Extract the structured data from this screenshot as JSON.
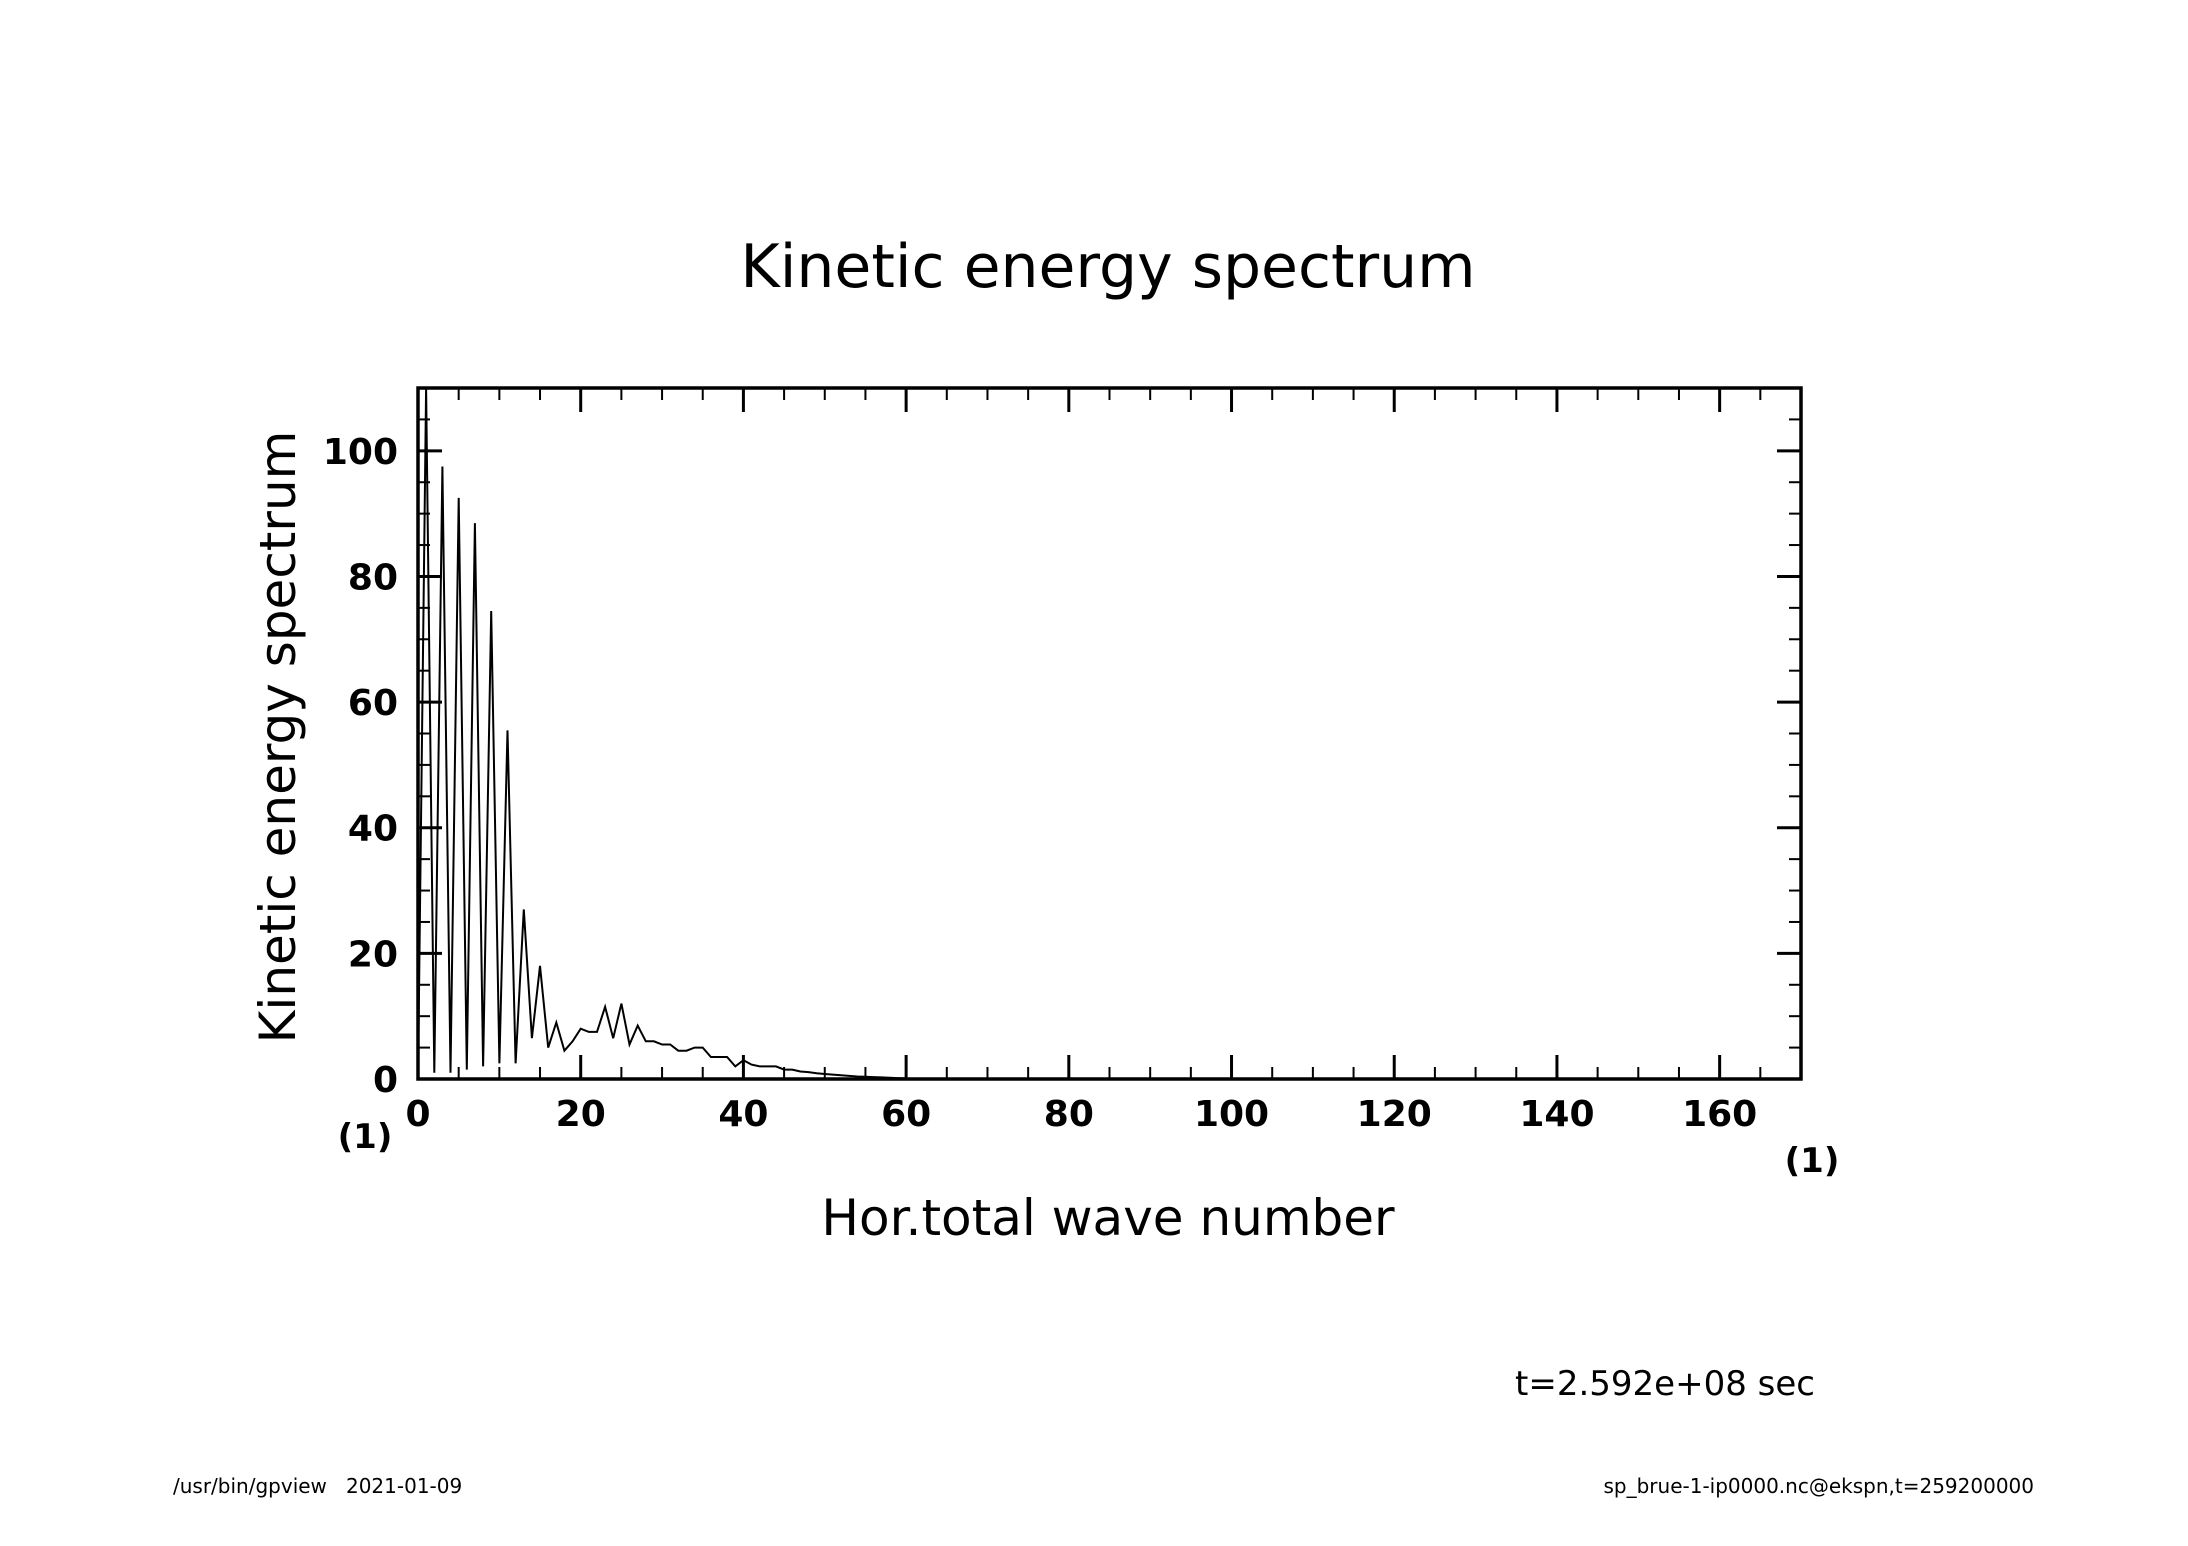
{
  "chart_data": {
    "type": "line",
    "title": "Kinetic energy spectrum",
    "xlabel": "Hor.total wave number",
    "ylabel": "Kinetic energy spectrum",
    "x_unit": "(1)",
    "y_unit": "(1)",
    "xlim": [
      0,
      170
    ],
    "ylim": [
      0,
      110
    ],
    "x_ticks": [
      0,
      20,
      40,
      60,
      80,
      100,
      120,
      140,
      160
    ],
    "y_ticks": [
      0,
      20,
      40,
      60,
      80,
      100
    ],
    "grid": false,
    "series": [
      {
        "x": [
          0,
          1,
          2,
          3,
          4,
          5,
          6,
          7,
          8,
          9,
          10,
          11,
          12,
          13,
          14,
          15,
          16,
          17,
          18,
          19,
          20,
          21,
          22,
          23,
          24,
          25,
          26,
          27,
          28,
          29,
          30,
          31,
          32,
          33,
          34,
          35,
          36,
          37,
          38,
          39,
          40,
          41,
          42,
          43,
          44,
          45,
          46,
          47,
          48,
          49,
          50,
          51,
          52,
          53,
          54,
          55,
          56,
          57,
          58,
          59,
          60,
          62,
          64,
          66,
          68,
          70,
          75,
          80,
          90,
          100,
          110,
          120,
          130,
          140,
          150,
          160,
          169
        ],
        "y": [
          0,
          110,
          1,
          97.5,
          1,
          92.5,
          1.5,
          88.5,
          2,
          74.5,
          2.5,
          55.5,
          2.5,
          27,
          6.5,
          18,
          5,
          9,
          4.5,
          6,
          8,
          7.5,
          7.5,
          11.5,
          6.5,
          12,
          5.5,
          8.5,
          6,
          6,
          5.5,
          5.5,
          4.5,
          4.5,
          5,
          5,
          3.5,
          3.5,
          3.5,
          2,
          3,
          2.3,
          2,
          2,
          2,
          1.5,
          1.5,
          1.2,
          1.1,
          0.9,
          0.8,
          0.7,
          0.6,
          0.5,
          0.4,
          0.35,
          0.3,
          0.25,
          0.2,
          0.15,
          0.1,
          0.08,
          0.05,
          0.04,
          0.03,
          0.02,
          0.01,
          0.01,
          0,
          0,
          0,
          0,
          0,
          0,
          0,
          0,
          0
        ]
      }
    ]
  },
  "annotation": "t=2.592e+08 sec",
  "footer": {
    "left": "/usr/bin/gpview   2021-01-09",
    "right": "sp_brue-1-ip0000.nc@ekspn,t=259200000"
  }
}
